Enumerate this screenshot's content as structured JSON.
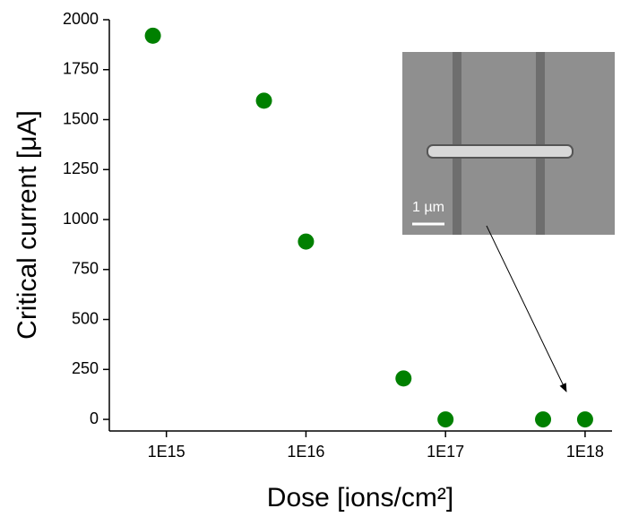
{
  "chart_data": {
    "type": "scatter",
    "xlabel": "Dose [ions/cm²]",
    "ylabel": "Critical current [μA]",
    "xscale": "log",
    "xlim": [
      390000000000000.0,
      1.56e+18
    ],
    "xticks": [
      {
        "value": 1000000000000000.0,
        "label": "1E15"
      },
      {
        "value": 1e+16,
        "label": "1E16"
      },
      {
        "value": 1e+17,
        "label": "1E17"
      },
      {
        "value": 1e+18,
        "label": "1E18"
      }
    ],
    "ylim": [
      -58,
      2000
    ],
    "yticks": [
      0,
      250,
      500,
      750,
      1000,
      1250,
      1500,
      1750,
      2000
    ],
    "series": [
      {
        "color": "#008000",
        "x": [
          800000000000000.0,
          5000000000000000.0,
          1e+16,
          5e+16,
          1e+17,
          5e+17,
          1e+18
        ],
        "values": [
          1920,
          1595,
          890,
          205,
          0,
          0,
          0
        ]
      }
    ],
    "inset_scale_label": "1 µm"
  }
}
